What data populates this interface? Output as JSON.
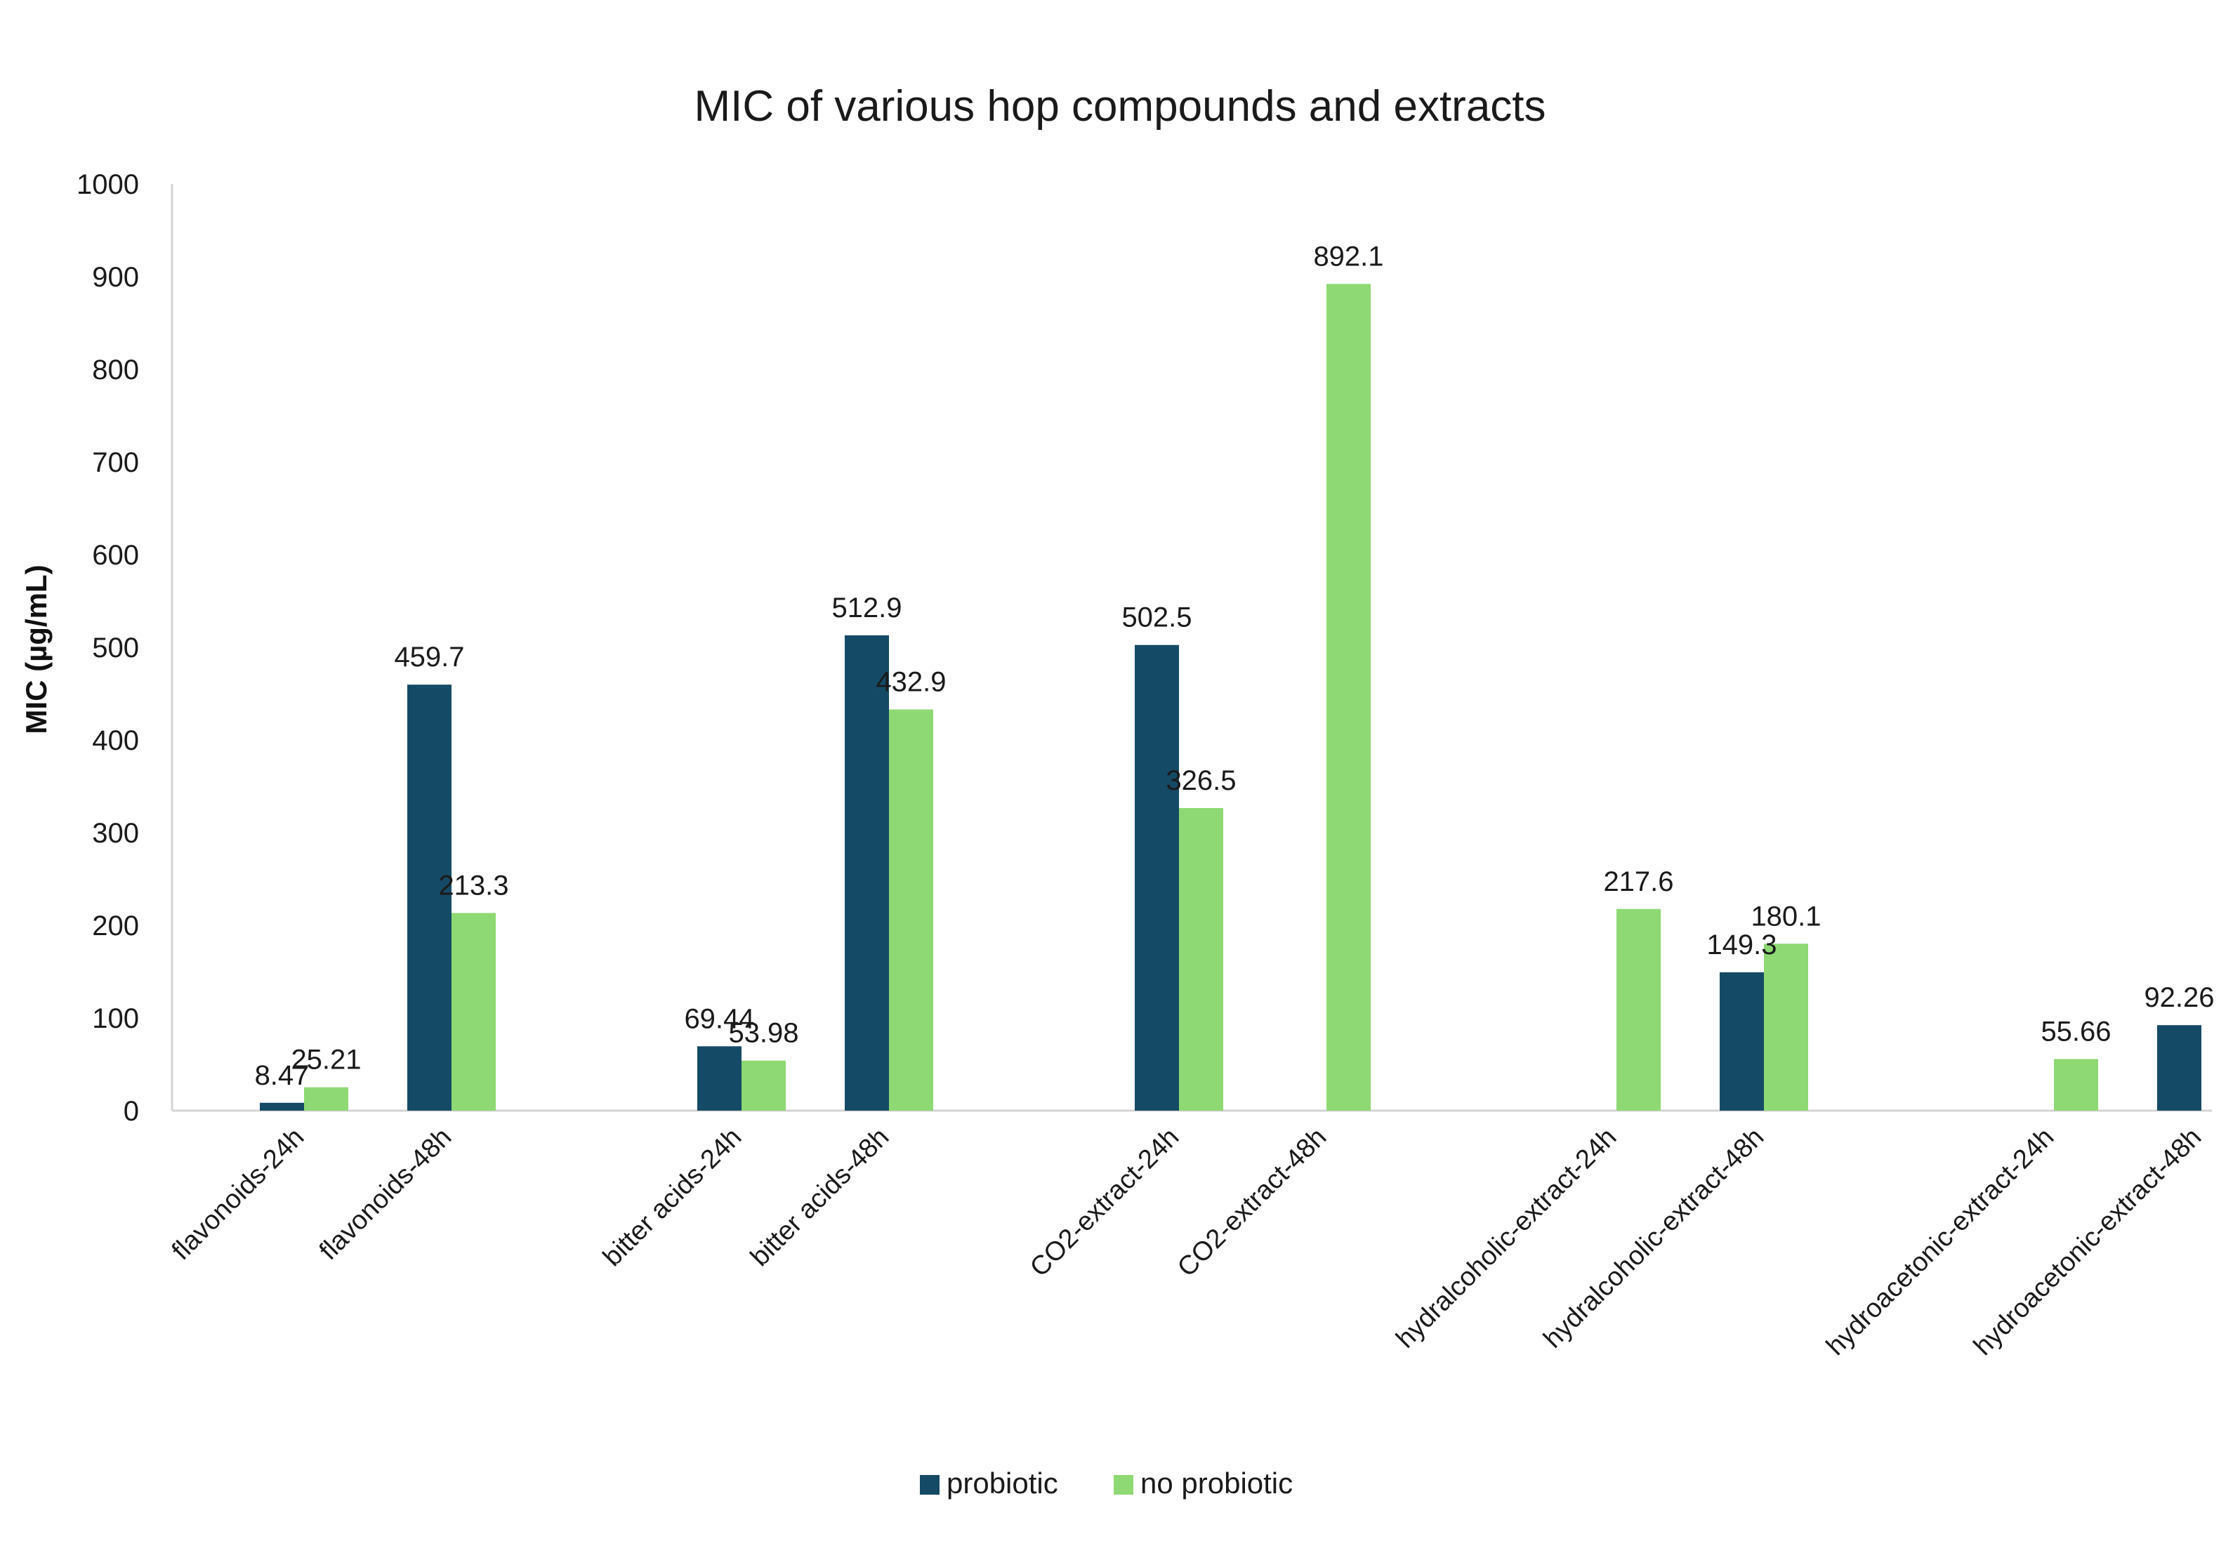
{
  "chart_data": {
    "type": "bar",
    "title": "MIC of various hop compounds and extracts",
    "xlabel": "",
    "ylabel": "MIC (µg/mL)",
    "ylim": [
      0,
      1000
    ],
    "yticks": [
      0,
      100,
      200,
      300,
      400,
      500,
      600,
      700,
      800,
      900,
      1000
    ],
    "grid": false,
    "legend_position": "bottom-center",
    "categories": [
      "flavonoids-24h",
      "flavonoids-48h",
      "bitter acids-24h",
      "bitter acids-48h",
      "CO2-extract-24h",
      "CO2-extract-48h",
      "hydralcoholic-extract-24h",
      "hydralcoholic-extract-48h",
      "hydroacetonic-extract-24h",
      "hydroacetonic-extract-48h"
    ],
    "series": [
      {
        "name": "probiotic",
        "color": "#154A66",
        "values": [
          8.47,
          459.7,
          69.44,
          512.9,
          502.5,
          null,
          null,
          149.3,
          null,
          92.26
        ],
        "labels": [
          "8.47",
          "459.7",
          "69.44",
          "512.9",
          "502.5",
          null,
          null,
          "149.3",
          null,
          "92.26"
        ]
      },
      {
        "name": "no probiotic",
        "color": "#8ED973",
        "values": [
          25.21,
          213.3,
          53.98,
          432.9,
          326.5,
          892.1,
          217.6,
          180.1,
          55.66,
          null
        ],
        "labels": [
          "25.21",
          "213.3",
          "53.98",
          "432.9",
          "326.5",
          "892.1",
          "217.6",
          "180.1",
          "55.66",
          null
        ]
      }
    ]
  }
}
